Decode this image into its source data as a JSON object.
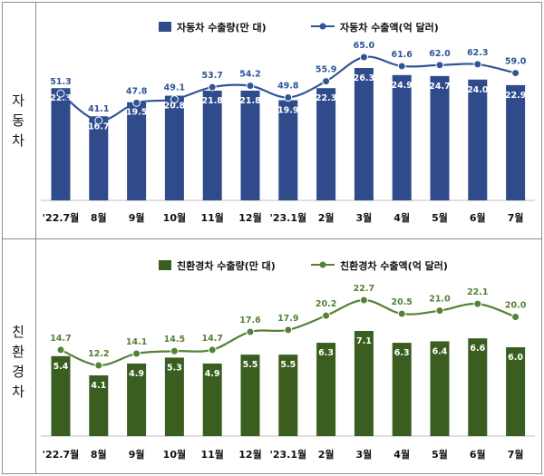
{
  "categories": [
    "'22.7월",
    "8월",
    "9월",
    "10월",
    "11월",
    "12월",
    "'23.1월",
    "2월",
    "3월",
    "4월",
    "5월",
    "6월",
    "7월"
  ],
  "panels": [
    {
      "side_label": "자동차",
      "bar_color": "#2F4B8C",
      "line_color": "#2F5597",
      "bar_legend": "자동차 수출량(만 대)",
      "line_legend": "자동차 수출액(억 달러)"
    },
    {
      "side_label": "친환경차",
      "bar_color": "#3A5E1F",
      "line_color": "#548235",
      "bar_legend": "친환경차 수출량(만 대)",
      "line_legend": "친환경차 수출액(억 달러)"
    }
  ],
  "chart_data": [
    {
      "type": "bar+line",
      "categories": [
        "'22.7월",
        "8월",
        "9월",
        "10월",
        "11월",
        "12월",
        "'23.1월",
        "2월",
        "3월",
        "4월",
        "5월",
        "6월",
        "7월"
      ],
      "series": [
        {
          "name": "자동차 수출량(만 대)",
          "type": "bar",
          "values": [
            22.3,
            16.7,
            19.5,
            20.8,
            21.8,
            21.8,
            19.9,
            22.3,
            26.3,
            24.9,
            24.7,
            24.0,
            22.9
          ]
        },
        {
          "name": "자동차 수출액(억 달러)",
          "type": "line",
          "values": [
            51.3,
            41.1,
            47.8,
            49.1,
            53.7,
            54.2,
            49.8,
            55.9,
            65.0,
            61.6,
            62.0,
            62.3,
            59.0
          ]
        }
      ],
      "legend": "top-center",
      "grid": false
    },
    {
      "type": "bar+line",
      "categories": [
        "'22.7월",
        "8월",
        "9월",
        "10월",
        "11월",
        "12월",
        "'23.1월",
        "2월",
        "3월",
        "4월",
        "5월",
        "6월",
        "7월"
      ],
      "series": [
        {
          "name": "친환경차 수출량(만 대)",
          "type": "bar",
          "values": [
            5.4,
            4.1,
            4.9,
            5.3,
            4.9,
            5.5,
            5.5,
            6.3,
            7.1,
            6.3,
            6.4,
            6.6,
            6.0
          ]
        },
        {
          "name": "친환경차 수출액(억 달러)",
          "type": "line",
          "values": [
            14.7,
            12.2,
            14.1,
            14.5,
            14.7,
            17.6,
            17.9,
            20.2,
            22.7,
            20.5,
            21.0,
            22.1,
            20.0
          ]
        }
      ],
      "legend": "top-center",
      "grid": false
    }
  ]
}
